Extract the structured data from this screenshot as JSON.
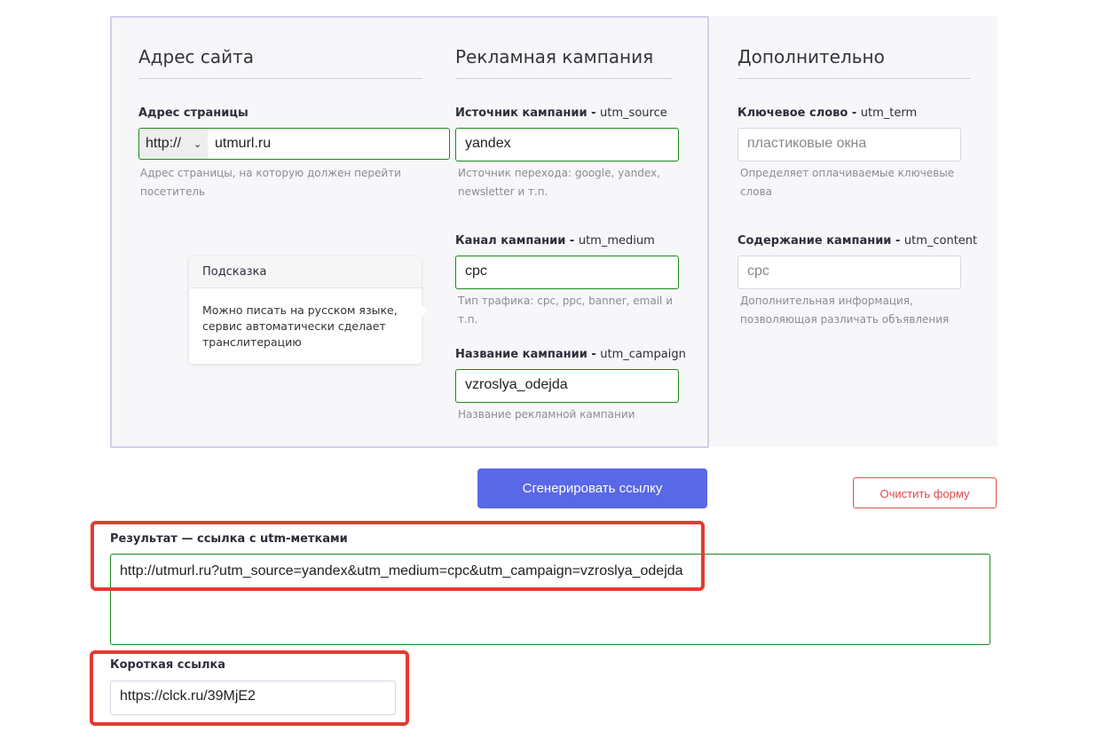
{
  "sections": {
    "site": "Адрес сайта",
    "campaign": "Рекламная кампания",
    "extra": "Дополнительно"
  },
  "url": {
    "label": "Адрес страницы",
    "protocol": "http://",
    "value": "utmurl.ru",
    "help": "Адрес страницы, на которую должен перейти посетитель"
  },
  "source": {
    "label": "Источник кампании - ",
    "param": "utm_source",
    "value": "yandex",
    "help": "Источник перехода: google, yandex, newsletter и т.п."
  },
  "medium": {
    "label": "Канал кампании - ",
    "param": "utm_medium",
    "value": "cpc",
    "help": "Тип трафика: cpc, ppc, banner, email и т.п."
  },
  "campaign": {
    "label": "Название кампании - ",
    "param": "utm_campaign",
    "value": "vzroslya_odejda",
    "help": "Название рекламной кампании"
  },
  "term": {
    "label": "Ключевое слово - ",
    "param": "utm_term",
    "placeholder": "пластиковые окна",
    "help": "Определяет оплачиваемые ключевые слова"
  },
  "content": {
    "label": "Содержание кампании - ",
    "param": "utm_content",
    "placeholder": "cpc",
    "help": "Дополнительная информация, позволяющая различать объявления"
  },
  "tooltip": {
    "title": "Подсказка",
    "body": "Можно писать на русском языке, сервис автоматически сделает транслитерацию"
  },
  "buttons": {
    "generate": "Сгенерировать ссылку",
    "clear": "Очистить форму"
  },
  "result": {
    "label": "Результат — ссылка с utm-метками",
    "value": "http://utmurl.ru?utm_source=yandex&utm_medium=cpc&utm_campaign=vzroslya_odejda"
  },
  "short": {
    "label": "Короткая ссылка",
    "value": "https://clck.ru/39MjE2"
  }
}
